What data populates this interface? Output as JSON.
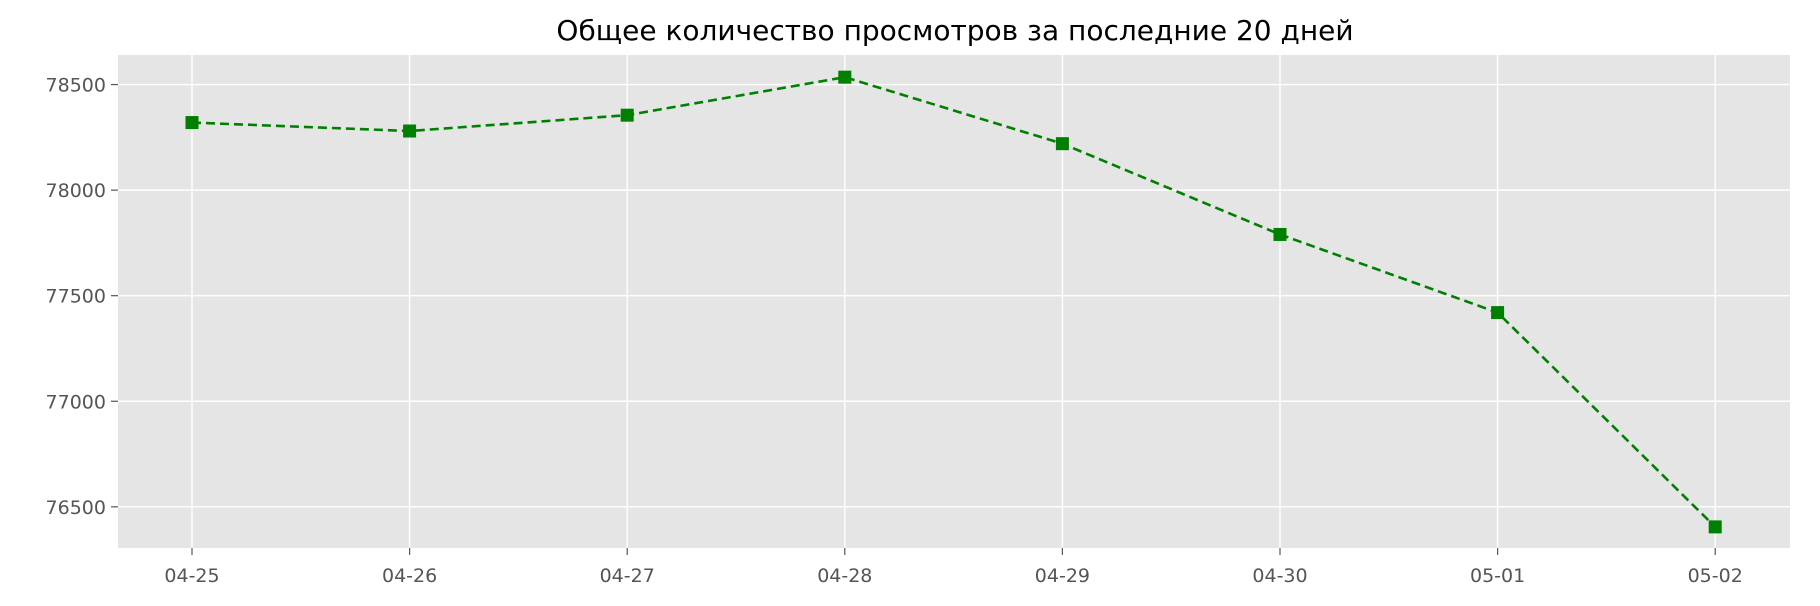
{
  "chart_data": {
    "type": "line",
    "title": "Общее количество просмотров за последние 20 дней",
    "xlabel": "",
    "ylabel": "",
    "categories": [
      "04-25",
      "04-26",
      "04-27",
      "04-28",
      "04-29",
      "04-30",
      "05-01",
      "05-02"
    ],
    "series": [
      {
        "values": [
          78320,
          78280,
          78355,
          78535,
          78220,
          77790,
          77420,
          76405
        ],
        "color": "#008000",
        "line_style": "dashed",
        "marker": "square"
      }
    ],
    "ylim": [
      76305,
      78640
    ],
    "yticks": [
      76500,
      77000,
      77500,
      78000,
      78500
    ],
    "grid": true,
    "legend": "none",
    "colors": {
      "plot_background": "#e5e5e5",
      "grid": "#ffffff",
      "tick_label": "#555555",
      "line": "#008000"
    }
  }
}
